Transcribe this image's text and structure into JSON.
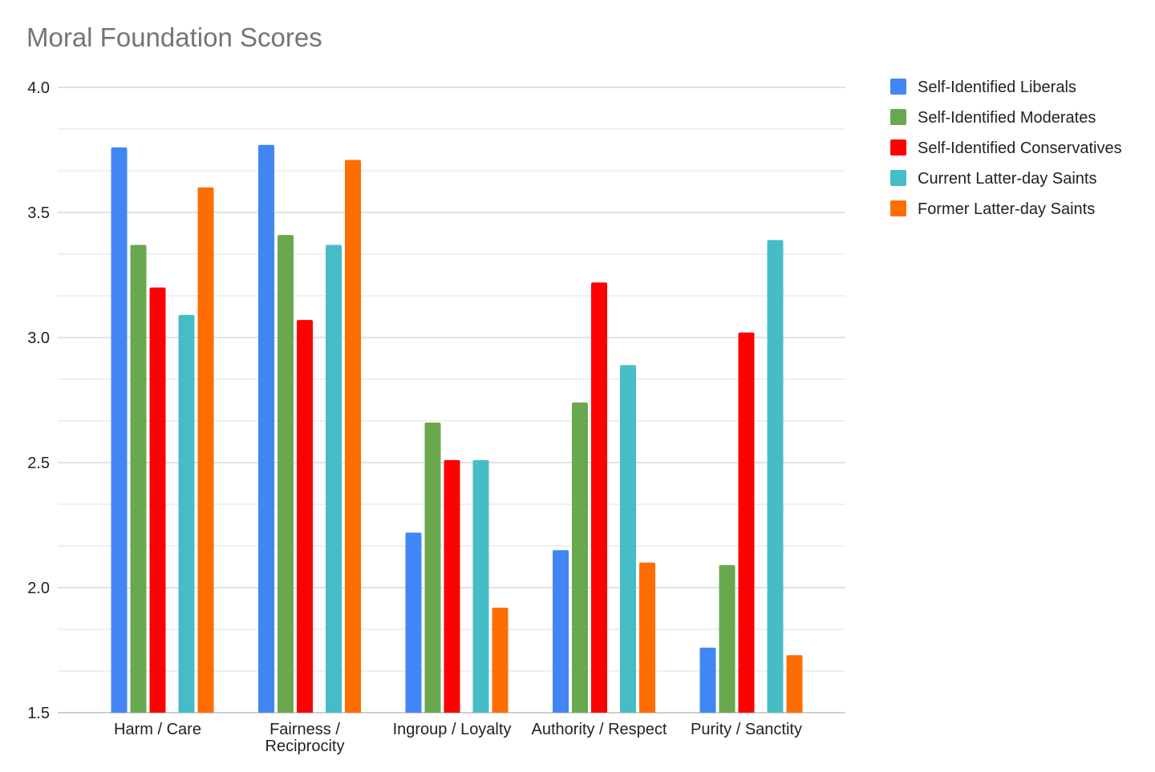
{
  "chart_data": {
    "type": "bar",
    "title": "Moral Foundation Scores",
    "xlabel": "",
    "ylabel": "",
    "ylim": [
      1.5,
      4.0
    ],
    "yticks": [
      "1.5",
      "2.0",
      "2.5",
      "3.0",
      "3.5",
      "4.0"
    ],
    "grid": true,
    "legend_position": "right",
    "categories": [
      "Harm / Care",
      "Fairness / Reciprocity",
      "Ingroup / Loyalty",
      "Authority / Respect",
      "Purity / Sanctity"
    ],
    "series": [
      {
        "name": "Self-Identified Liberals",
        "color": "#4285f4",
        "values": [
          3.76,
          3.77,
          2.22,
          2.15,
          1.76
        ]
      },
      {
        "name": "Self-Identified Moderates",
        "color": "#6aa84f",
        "values": [
          3.37,
          3.41,
          2.66,
          2.74,
          2.09
        ]
      },
      {
        "name": "Self-Identified Conservatives",
        "color": "#ff0000",
        "values": [
          3.2,
          3.07,
          2.51,
          3.22,
          3.02
        ]
      },
      {
        "name": "Current Latter-day Saints",
        "color": "#46bdc6",
        "values": [
          3.09,
          3.37,
          2.51,
          2.89,
          3.39
        ]
      },
      {
        "name": "Former Latter-day Saints",
        "color": "#ff6d01",
        "values": [
          3.6,
          3.71,
          1.92,
          2.1,
          1.73
        ]
      }
    ]
  }
}
